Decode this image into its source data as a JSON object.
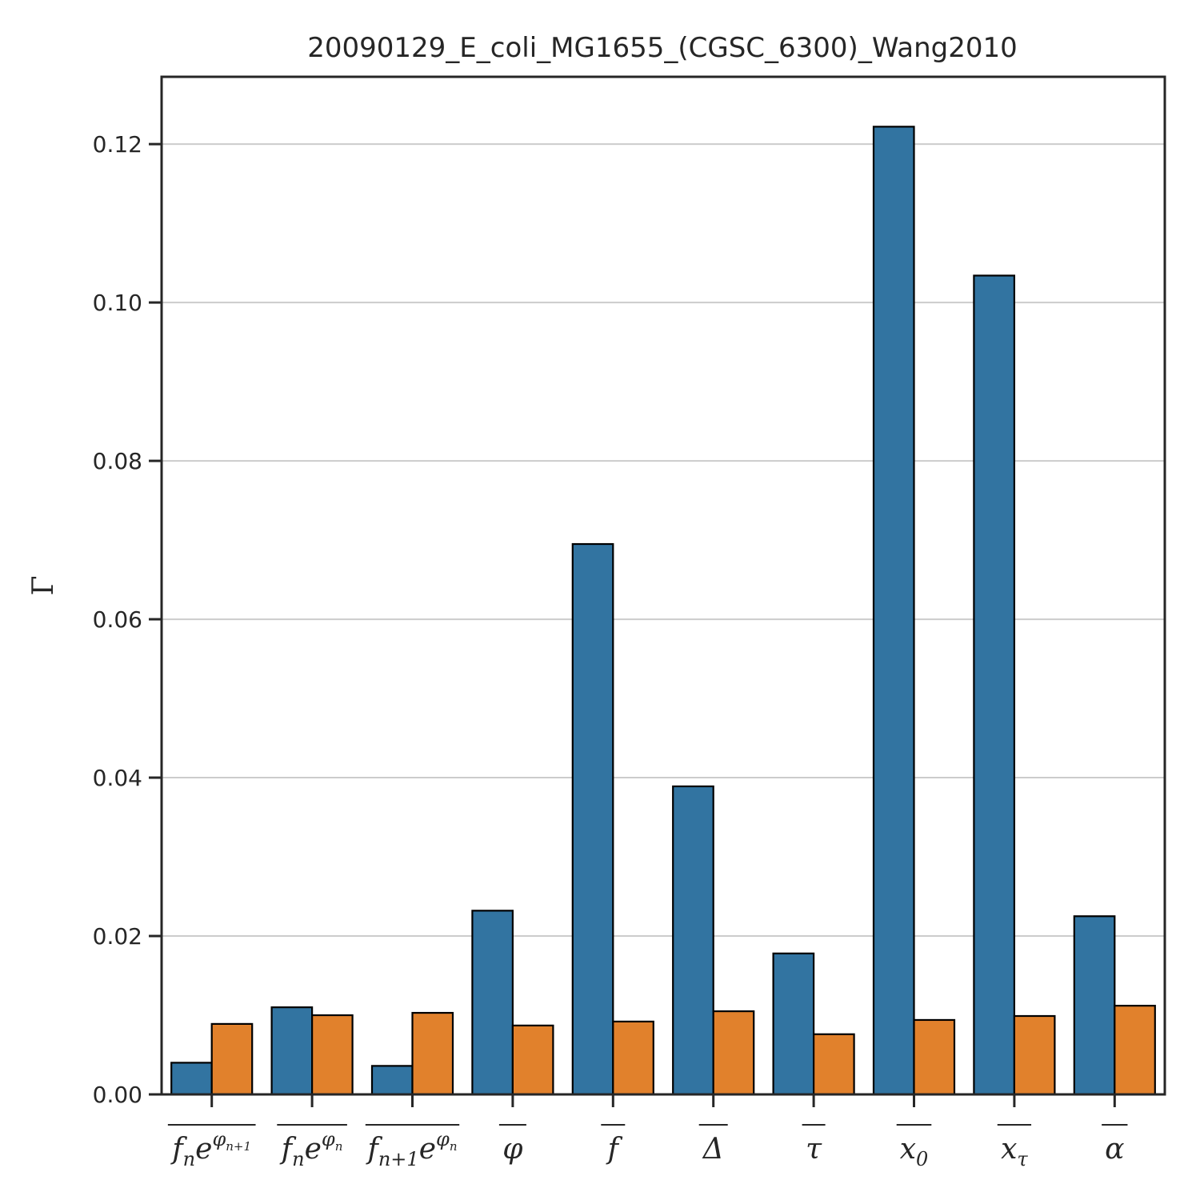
{
  "chart_data": {
    "type": "bar",
    "title": "20090129_E_coli_MG1655_(CGSC_6300)_Wang2010",
    "xlabel": "",
    "ylabel": "Γ",
    "ylim": [
      0,
      0.1285
    ],
    "yticks": [
      "0.00",
      "0.02",
      "0.04",
      "0.06",
      "0.08",
      "0.10",
      "0.12"
    ],
    "grid": "horizontal",
    "categories": [
      {
        "base": "f",
        "sub": "n",
        "mid": "e",
        "sup": "φ",
        "supsub": "n+1"
      },
      {
        "base": "f",
        "sub": "n",
        "mid": "e",
        "sup": "φ",
        "supsub": "n"
      },
      {
        "base": "f",
        "sub": "n+1",
        "mid": "e",
        "sup": "φ",
        "supsub": "n"
      },
      {
        "base": "φ"
      },
      {
        "base": "f"
      },
      {
        "base": "Δ"
      },
      {
        "base": "τ"
      },
      {
        "base": "x",
        "sub": "0"
      },
      {
        "base": "x",
        "sub": "τ"
      },
      {
        "base": "α"
      }
    ],
    "colors": [
      "#3274a1",
      "#e1812c"
    ],
    "series": [
      {
        "values": [
          0.004,
          0.011,
          0.0036,
          0.0232,
          0.0695,
          0.0389,
          0.0178,
          0.1222,
          0.1034,
          0.0225
        ]
      },
      {
        "values": [
          0.0089,
          0.01,
          0.0103,
          0.0087,
          0.0092,
          0.0105,
          0.0076,
          0.0094,
          0.0099,
          0.0112
        ]
      }
    ]
  }
}
